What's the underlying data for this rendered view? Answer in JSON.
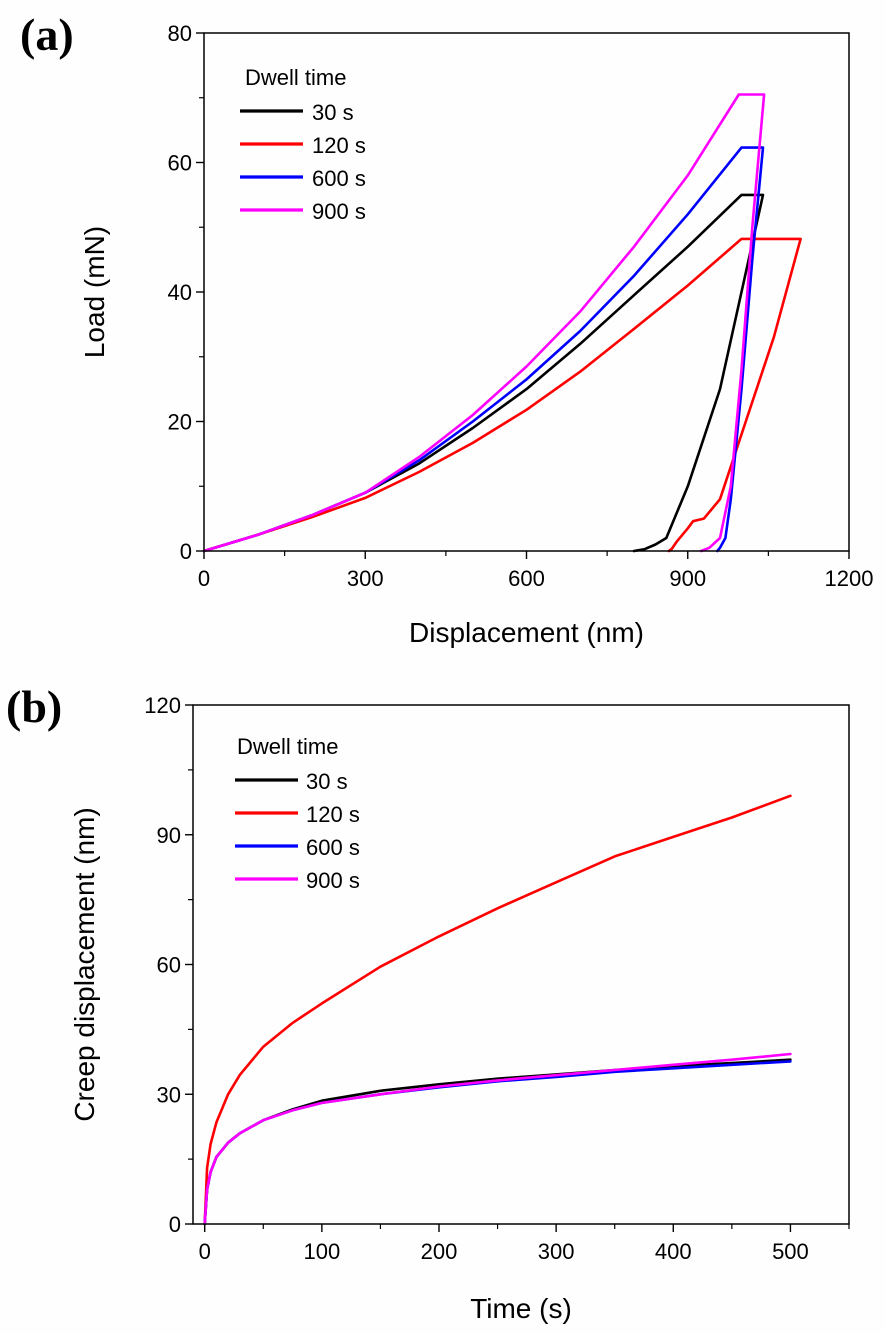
{
  "chart_data": [
    {
      "panel_label": "(a)",
      "type": "line",
      "xlabel": "Displacement (nm)",
      "ylabel": "Load (mN)",
      "xlim": [
        0,
        1200
      ],
      "ylim": [
        0,
        80
      ],
      "xticks": [
        0,
        300,
        600,
        900,
        1200
      ],
      "yticks": [
        0,
        20,
        40,
        60,
        80
      ],
      "legend_title": "Dwell time",
      "legend_position": "top-left",
      "series": [
        {
          "name": "30 s",
          "color": "#000000",
          "x": [
            0,
            100,
            200,
            300,
            400,
            500,
            600,
            700,
            800,
            900,
            1000,
            1020,
            1040,
            1000,
            960,
            900,
            860,
            840,
            820,
            800
          ],
          "y": [
            0,
            2.5,
            5.5,
            9,
            13.5,
            19,
            25,
            32,
            39.5,
            47,
            55,
            55,
            55,
            40,
            25,
            10,
            2,
            1,
            0.3,
            0
          ]
        },
        {
          "name": "120 s",
          "color": "#ff0000",
          "x": [
            0,
            100,
            200,
            300,
            400,
            500,
            600,
            700,
            800,
            900,
            1000,
            1020,
            1060,
            1110,
            1060,
            1000,
            960,
            930,
            920,
            910,
            900,
            890,
            880,
            870,
            865
          ],
          "y": [
            0,
            2.5,
            5.2,
            8.2,
            12.2,
            16.7,
            21.8,
            27.7,
            34.3,
            41,
            48.2,
            48.2,
            48.2,
            48.2,
            33,
            18,
            8,
            5,
            4.8,
            4.6,
            3.5,
            2.5,
            1.5,
            0.3,
            0
          ]
        },
        {
          "name": "600 s",
          "color": "#0000ff",
          "x": [
            0,
            100,
            200,
            300,
            400,
            500,
            600,
            700,
            800,
            900,
            1000,
            1020,
            1040,
            1020,
            1000,
            980,
            970,
            960,
            955
          ],
          "y": [
            0,
            2.5,
            5.5,
            9,
            14,
            20,
            26.5,
            34,
            42.5,
            52,
            62.3,
            62.3,
            62.3,
            45,
            25,
            8,
            2,
            0.5,
            0
          ]
        },
        {
          "name": "900 s",
          "color": "#ff00ff",
          "x": [
            0,
            100,
            200,
            300,
            400,
            500,
            600,
            700,
            800,
            900,
            995,
            1020,
            1042,
            1020,
            1000,
            980,
            960,
            940,
            925
          ],
          "y": [
            0,
            2.5,
            5.5,
            9,
            14.5,
            21,
            28.5,
            37,
            47,
            58,
            70.5,
            70.5,
            70.5,
            50,
            28,
            10,
            2,
            0.5,
            0
          ]
        }
      ]
    },
    {
      "panel_label": "(b)",
      "type": "line",
      "xlabel": "Time (s)",
      "ylabel": "Creep displacement (nm)",
      "xlim": [
        -10,
        550
      ],
      "ylim": [
        0,
        120
      ],
      "xticks": [
        0,
        100,
        200,
        300,
        400,
        500
      ],
      "yticks": [
        0,
        30,
        60,
        90,
        120
      ],
      "legend_title": "Dwell time",
      "legend_position": "top-left",
      "series": [
        {
          "name": "30 s",
          "color": "#000000",
          "x": [
            0,
            2,
            5,
            10,
            20,
            30,
            50,
            75,
            100,
            150,
            200,
            250,
            300,
            350,
            400,
            450,
            500
          ],
          "y": [
            0,
            8,
            12,
            15.5,
            18.8,
            21,
            24,
            26.5,
            28.5,
            30.8,
            32.3,
            33.6,
            34.6,
            35.6,
            36.5,
            37.2,
            38
          ]
        },
        {
          "name": "120 s",
          "color": "#ff0000",
          "x": [
            0,
            2,
            5,
            10,
            20,
            30,
            50,
            75,
            100,
            150,
            200,
            250,
            300,
            350,
            400,
            450,
            500
          ],
          "y": [
            0,
            13,
            18.5,
            23.5,
            30,
            34.5,
            41,
            46.5,
            51,
            59.5,
            66.5,
            73,
            79,
            85,
            89.5,
            94,
            99
          ]
        },
        {
          "name": "600 s",
          "color": "#0000ff",
          "x": [
            0,
            2,
            5,
            10,
            20,
            30,
            50,
            75,
            100,
            150,
            200,
            250,
            300,
            350,
            400,
            450,
            500
          ],
          "y": [
            0,
            8,
            12,
            15.5,
            18.8,
            21,
            24,
            26.3,
            28,
            30,
            31.6,
            33,
            34,
            35.2,
            36,
            36.8,
            37.6
          ]
        },
        {
          "name": "900 s",
          "color": "#ff00ff",
          "x": [
            0,
            2,
            5,
            10,
            20,
            30,
            50,
            75,
            100,
            150,
            200,
            250,
            300,
            350,
            400,
            450,
            500
          ],
          "y": [
            0,
            8,
            12,
            15.5,
            18.8,
            21,
            24,
            26.3,
            28,
            30,
            31.8,
            33.2,
            34.4,
            35.6,
            36.8,
            38,
            39.3
          ]
        }
      ]
    }
  ]
}
